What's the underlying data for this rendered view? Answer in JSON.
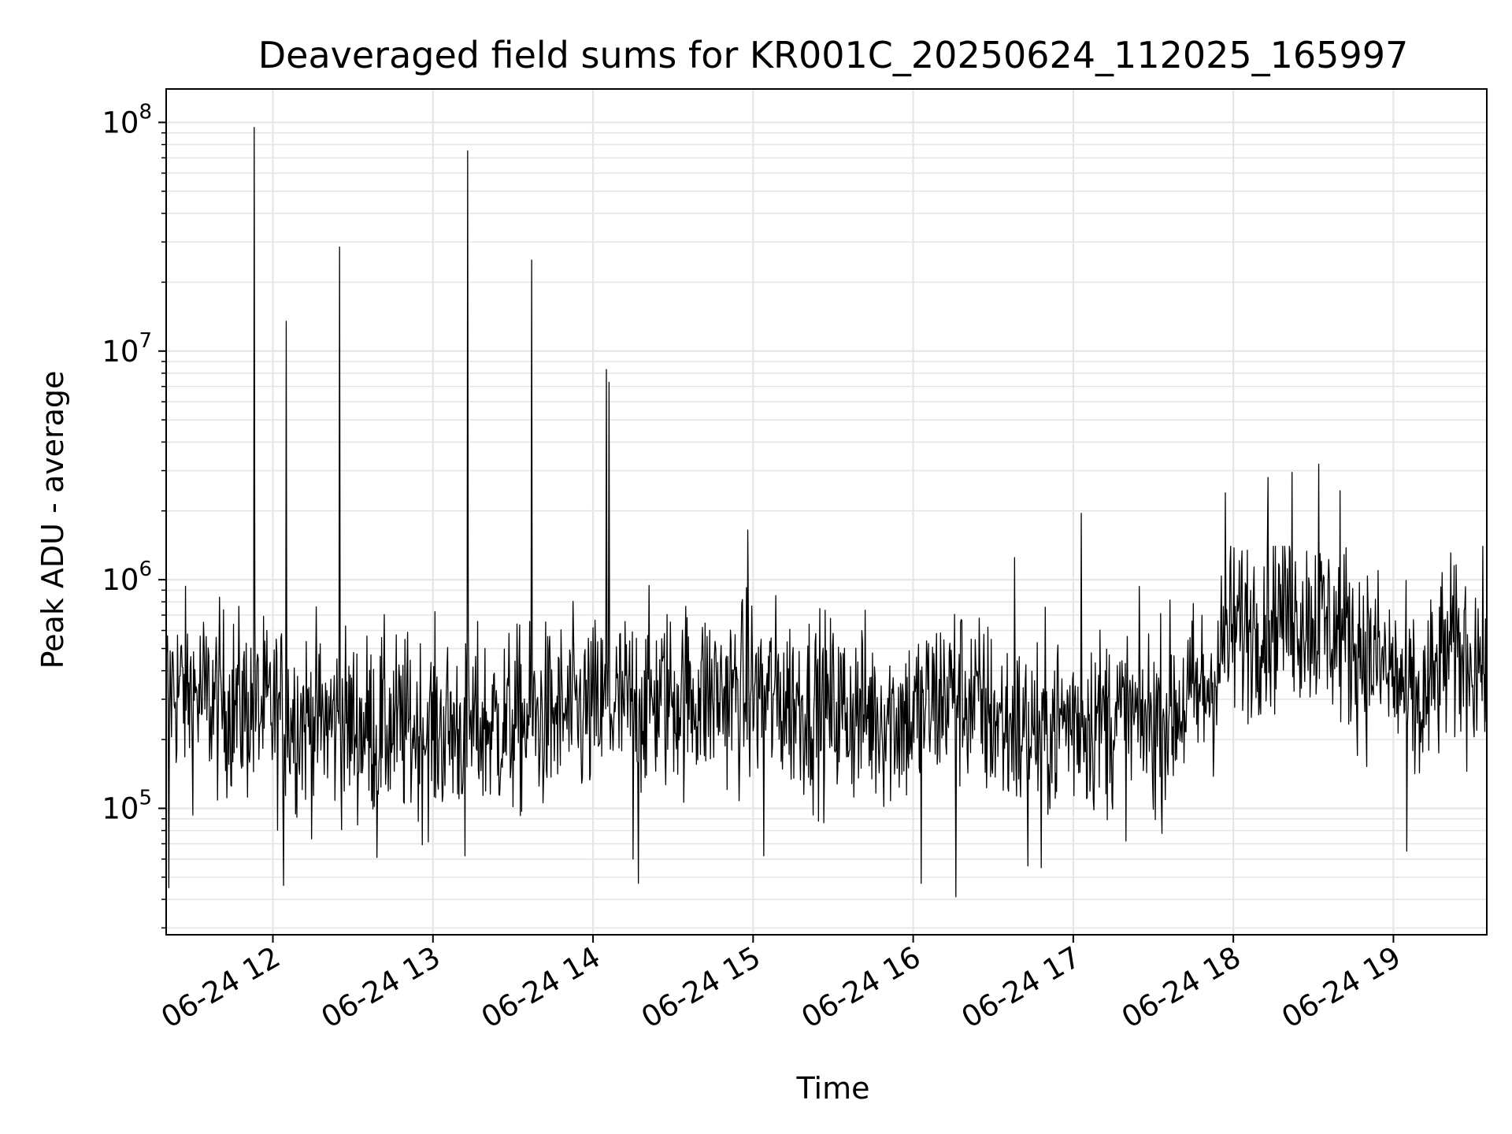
{
  "chart_data": {
    "type": "line",
    "title": "Deaveraged field sums for KR001C_20250624_112025_165997",
    "xlabel": "Time",
    "ylabel": "Peak ADU - average",
    "y_scale": "log",
    "ylim": [
      28000,
      140000000
    ],
    "xlim": [
      "2025-06-24 11:20",
      "2025-06-24 19:35"
    ],
    "grid": true,
    "x_ticks": [
      {
        "value": "2025-06-24 12:00",
        "label": "06-24 12"
      },
      {
        "value": "2025-06-24 13:00",
        "label": "06-24 13"
      },
      {
        "value": "2025-06-24 14:00",
        "label": "06-24 14"
      },
      {
        "value": "2025-06-24 15:00",
        "label": "06-24 15"
      },
      {
        "value": "2025-06-24 16:00",
        "label": "06-24 16"
      },
      {
        "value": "2025-06-24 17:00",
        "label": "06-24 17"
      },
      {
        "value": "2025-06-24 18:00",
        "label": "06-24 18"
      },
      {
        "value": "2025-06-24 19:00",
        "label": "06-24 19"
      }
    ],
    "y_ticks": [
      {
        "value": 100000,
        "base": "10",
        "exp": "5"
      },
      {
        "value": 1000000,
        "base": "10",
        "exp": "6"
      },
      {
        "value": 10000000,
        "base": "10",
        "exp": "7"
      },
      {
        "value": 100000000,
        "base": "10",
        "exp": "8"
      }
    ],
    "series": [
      {
        "color": "#000000",
        "baseline": [
          {
            "x": "2025-06-24 11:20",
            "y": 350000
          },
          {
            "x": "2025-06-24 11:35",
            "y": 300000
          },
          {
            "x": "2025-06-24 12:00",
            "y": 260000
          },
          {
            "x": "2025-06-24 12:30",
            "y": 230000
          },
          {
            "x": "2025-06-24 13:00",
            "y": 220000
          },
          {
            "x": "2025-06-24 13:30",
            "y": 235000
          },
          {
            "x": "2025-06-24 14:00",
            "y": 265000
          },
          {
            "x": "2025-06-24 14:30",
            "y": 310000
          },
          {
            "x": "2025-06-24 15:00",
            "y": 320000
          },
          {
            "x": "2025-06-24 15:30",
            "y": 270000
          },
          {
            "x": "2025-06-24 16:00",
            "y": 250000
          },
          {
            "x": "2025-06-24 16:15",
            "y": 330000
          },
          {
            "x": "2025-06-24 16:40",
            "y": 210000
          },
          {
            "x": "2025-06-24 17:00",
            "y": 250000
          },
          {
            "x": "2025-06-24 17:30",
            "y": 240000
          },
          {
            "x": "2025-06-24 17:50",
            "y": 330000
          },
          {
            "x": "2025-06-24 18:00",
            "y": 600000
          },
          {
            "x": "2025-06-24 18:20",
            "y": 750000
          },
          {
            "x": "2025-06-24 18:40",
            "y": 600000
          },
          {
            "x": "2025-06-24 19:00",
            "y": 380000
          },
          {
            "x": "2025-06-24 19:10",
            "y": 260000
          },
          {
            "x": "2025-06-24 19:20",
            "y": 480000
          },
          {
            "x": "2025-06-24 19:35",
            "y": 450000
          }
        ],
        "spikes": [
          {
            "x": "2025-06-24 11:53",
            "y": 95000000
          },
          {
            "x": "2025-06-24 12:05",
            "y": 13500000
          },
          {
            "x": "2025-06-24 12:25",
            "y": 28500000
          },
          {
            "x": "2025-06-24 13:13",
            "y": 75000000
          },
          {
            "x": "2025-06-24 13:37",
            "y": 25000000
          },
          {
            "x": "2025-06-24 14:05",
            "y": 8300000
          },
          {
            "x": "2025-06-24 14:06",
            "y": 7300000
          },
          {
            "x": "2025-06-24 14:58",
            "y": 1650000
          },
          {
            "x": "2025-06-24 16:38",
            "y": 1250000
          },
          {
            "x": "2025-06-24 17:03",
            "y": 1950000
          },
          {
            "x": "2025-06-24 17:57",
            "y": 2400000
          },
          {
            "x": "2025-06-24 18:13",
            "y": 2800000
          },
          {
            "x": "2025-06-24 18:22",
            "y": 2950000
          },
          {
            "x": "2025-06-24 18:32",
            "y": 3200000
          },
          {
            "x": "2025-06-24 18:40",
            "y": 2450000
          }
        ],
        "dips": [
          {
            "x": "2025-06-24 11:21",
            "y": 45000
          },
          {
            "x": "2025-06-24 12:04",
            "y": 46000
          },
          {
            "x": "2025-06-24 12:39",
            "y": 61000
          },
          {
            "x": "2025-06-24 13:12",
            "y": 62000
          },
          {
            "x": "2025-06-24 14:15",
            "y": 60000
          },
          {
            "x": "2025-06-24 14:17",
            "y": 47000
          },
          {
            "x": "2025-06-24 15:04",
            "y": 62000
          },
          {
            "x": "2025-06-24 16:03",
            "y": 47000
          },
          {
            "x": "2025-06-24 16:16",
            "y": 41000
          },
          {
            "x": "2025-06-24 16:43",
            "y": 56000
          },
          {
            "x": "2025-06-24 16:48",
            "y": 55000
          },
          {
            "x": "2025-06-24 19:05",
            "y": 65000
          }
        ]
      }
    ]
  }
}
